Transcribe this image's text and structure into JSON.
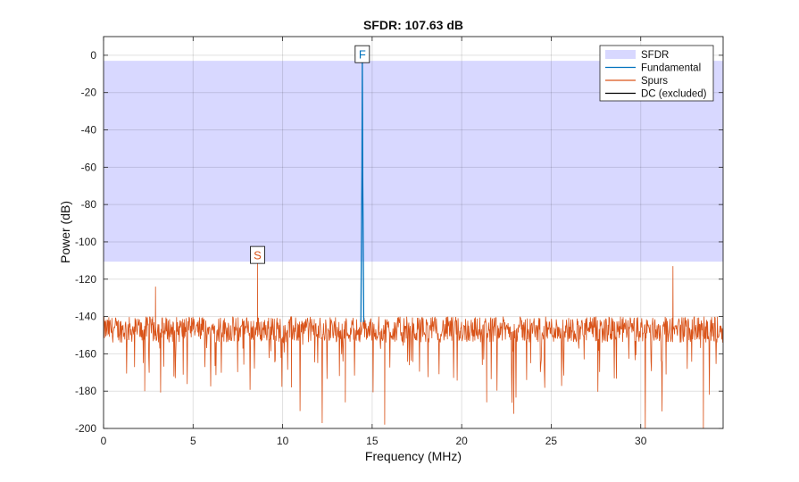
{
  "chart_data": {
    "type": "line",
    "title": "SFDR: 107.63 dB",
    "xlabel": "Frequency (MHz)",
    "ylabel": "Power (dB)",
    "xlim": [
      0,
      34.6
    ],
    "ylim": [
      -200,
      10
    ],
    "xticks": [
      0,
      5,
      10,
      15,
      20,
      25,
      30
    ],
    "yticks": [
      0,
      -20,
      -40,
      -60,
      -80,
      -100,
      -120,
      -140,
      -160,
      -180,
      -200
    ],
    "grid": true,
    "legend_position": "top-right",
    "sfdr_band": {
      "top_db": -3,
      "bottom_db": -110.6,
      "color": "#d8d8ff"
    },
    "fundamental": {
      "freq_mhz": 14.45,
      "power_db": -3,
      "marker_label": "F",
      "color": "#0072bd"
    },
    "spur": {
      "freq_mhz": 8.6,
      "power_db": -110.6,
      "marker_label": "S",
      "color": "#d95319"
    },
    "noise_floor_db": -147,
    "other_spurs": [
      {
        "freq_mhz": 2.9,
        "power_db": -124
      },
      {
        "freq_mhz": 31.8,
        "power_db": -113
      }
    ],
    "series": [
      {
        "name": "SFDR",
        "color": "#d8d8ff"
      },
      {
        "name": "Fundamental",
        "color": "#0072bd"
      },
      {
        "name": "Spurs",
        "color": "#d95319"
      },
      {
        "name": "DC (excluded)",
        "color": "#000000"
      }
    ]
  }
}
